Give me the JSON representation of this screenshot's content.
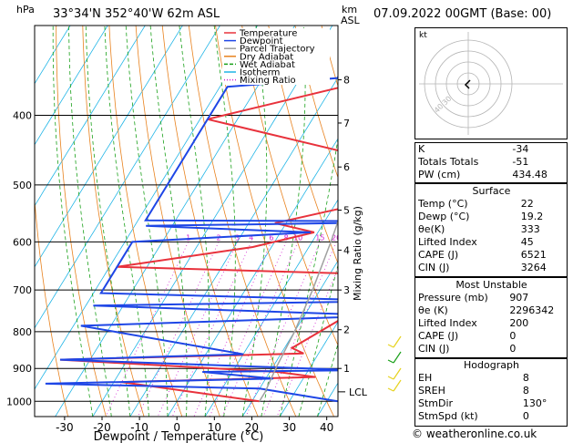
{
  "header": {
    "hpa_label": "hPa",
    "location": "33°34'N  352°40'W  62m  ASL",
    "km_label": "km",
    "asl_label": "ASL",
    "datetime": "07.09.2022  00GMT  (Base: 00)"
  },
  "legend": {
    "items": [
      {
        "label": "Temperature",
        "color": "#e8323c"
      },
      {
        "label": "Dewpoint",
        "color": "#1e46e6"
      },
      {
        "label": "Parcel Trajectory",
        "color": "#a0a0a0"
      },
      {
        "label": "Dry Adiabat",
        "color": "#e8821e"
      },
      {
        "label": "Wet Adiabat",
        "color": "#19a019"
      },
      {
        "label": "Isotherm",
        "color": "#1eb4e6"
      },
      {
        "label": "Mixing Ratio",
        "color": "#d21ed2"
      }
    ]
  },
  "chart_data": {
    "type": "line",
    "title": "",
    "xlabel": "Dewpoint / Temperature (°C)",
    "ylabel_right": "Mixing Ratio (g/kg)",
    "xlim": [
      -38,
      43
    ],
    "x_ticks": [
      "-30",
      "-20",
      "-10",
      "0",
      "10",
      "20",
      "30",
      "40"
    ],
    "pressure_range_hpa": [
      300,
      1050
    ],
    "pressure_ticks": [
      "400",
      "500",
      "600",
      "700",
      "800",
      "900",
      "1000"
    ],
    "height_km_labels": [
      {
        "label": "8",
        "p": 357
      },
      {
        "label": "7",
        "p": 410
      },
      {
        "label": "6",
        "p": 472
      },
      {
        "label": "5",
        "p": 542
      },
      {
        "label": "4",
        "p": 616
      },
      {
        "label": "3",
        "p": 700
      },
      {
        "label": "2",
        "p": 795
      },
      {
        "label": "1",
        "p": 900
      }
    ],
    "lcl_label": "LCL",
    "lcl_pressure": 970,
    "mixing_ratio_labels": [
      "1",
      "2",
      "3",
      "4",
      "6",
      "8",
      "10",
      "15",
      "20",
      "25"
    ],
    "mixing_ratio_label_pressure": 600,
    "series": [
      {
        "name": "Temperature",
        "color": "#e8323c",
        "points": [
          {
            "p": 300,
            "t": -6
          },
          {
            "p": 355,
            "t": 1
          },
          {
            "p": 405,
            "t": -38
          },
          {
            "p": 450,
            "t": 4
          },
          {
            "p": 490,
            "t": 43
          },
          {
            "p": 565,
            "t": -3
          },
          {
            "p": 582,
            "t": 9
          },
          {
            "p": 610,
            "t": -5
          },
          {
            "p": 650,
            "t": -38
          },
          {
            "p": 668,
            "t": 43
          },
          {
            "p": 843,
            "t": 22
          },
          {
            "p": 858,
            "t": 26
          },
          {
            "p": 875,
            "t": -38
          },
          {
            "p": 910,
            "t": 22
          },
          {
            "p": 925,
            "t": 33
          },
          {
            "p": 940,
            "t": -18
          },
          {
            "p": 1000,
            "t": 22
          }
        ]
      },
      {
        "name": "Dewpoint",
        "color": "#1e46e6",
        "points": [
          {
            "p": 300,
            "t": -12
          },
          {
            "p": 355,
            "t": -10
          },
          {
            "p": 365,
            "t": -38
          },
          {
            "p": 560,
            "t": -38
          },
          {
            "p": 562,
            "t": 43
          },
          {
            "p": 570,
            "t": -37
          },
          {
            "p": 582,
            "t": 8
          },
          {
            "p": 600,
            "t": -38
          },
          {
            "p": 707,
            "t": -38
          },
          {
            "p": 725,
            "t": 43
          },
          {
            "p": 736,
            "t": -38
          },
          {
            "p": 760,
            "t": 43
          },
          {
            "p": 785,
            "t": -38
          },
          {
            "p": 860,
            "t": 10
          },
          {
            "p": 875,
            "t": -38
          },
          {
            "p": 905,
            "t": 43
          },
          {
            "p": 910,
            "t": 2
          },
          {
            "p": 930,
            "t": 22
          },
          {
            "p": 945,
            "t": -38
          },
          {
            "p": 960,
            "t": 20
          },
          {
            "p": 1000,
            "t": 43
          }
        ]
      },
      {
        "name": "Parcel Trajectory",
        "color": "#a0a0a0",
        "points": [
          {
            "p": 300,
            "t": -3
          },
          {
            "p": 400,
            "t": 5
          },
          {
            "p": 500,
            "t": 11
          },
          {
            "p": 600,
            "t": 15
          },
          {
            "p": 700,
            "t": 18
          },
          {
            "p": 800,
            "t": 20
          },
          {
            "p": 900,
            "t": 21
          },
          {
            "p": 970,
            "t": 22
          },
          {
            "p": 1000,
            "t": 22
          }
        ]
      }
    ]
  },
  "hodograph": {
    "unit_label": "kt",
    "ring_labels": [
      "10",
      "20",
      "30",
      "40"
    ],
    "speed_labels_shown": [
      "30",
      "40"
    ],
    "storm_dir_deg": 130,
    "storm_speed_kt": 0
  },
  "indices": {
    "k": {
      "label": "K",
      "value": "-34"
    },
    "tt": {
      "label": "Totals Totals",
      "value": "-51"
    },
    "pw": {
      "label": "PW (cm)",
      "value": "434.48"
    }
  },
  "surface": {
    "title": "Surface",
    "rows": [
      {
        "label": "Temp (°C)",
        "value": "22"
      },
      {
        "label": "Dewp (°C)",
        "value": "19.2"
      },
      {
        "label": "θe(K)",
        "value": "333"
      },
      {
        "label": "Lifted Index",
        "value": "45"
      },
      {
        "label": "CAPE (J)",
        "value": "6521"
      },
      {
        "label": "CIN (J)",
        "value": "3264"
      }
    ]
  },
  "most_unstable": {
    "title": "Most Unstable",
    "rows": [
      {
        "label": "Pressure (mb)",
        "value": "907"
      },
      {
        "label": "θe (K)",
        "value": "2296342"
      },
      {
        "label": "Lifted Index",
        "value": "200"
      },
      {
        "label": "CAPE (J)",
        "value": "0"
      },
      {
        "label": "CIN (J)",
        "value": "0"
      }
    ]
  },
  "hodograph_table": {
    "title": "Hodograph",
    "rows": [
      {
        "label": "EH",
        "value": "8"
      },
      {
        "label": "SREH",
        "value": "8"
      },
      {
        "label": "StmDir",
        "value": "130°"
      },
      {
        "label": "StmSpd (kt)",
        "value": "0"
      }
    ]
  },
  "copyright": "© weatheronline.co.uk"
}
